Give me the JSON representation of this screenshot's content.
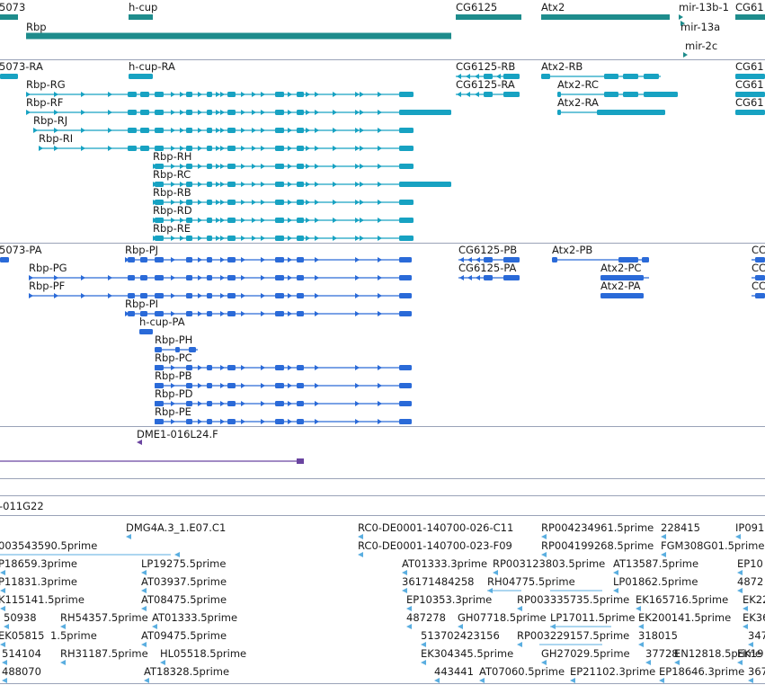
{
  "colors": {
    "gene_teal": "#1e8c8c",
    "transcript_teal": "#17a2c2",
    "transcript_blue": "#2a6ad8",
    "clone_purple": "#6a44a0",
    "est_light_blue": "#5aaee0",
    "track_divider": "#9aa3b8"
  },
  "track_genes": {
    "genes": [
      {
        "label": "5073",
        "bar": "5073"
      },
      {
        "label": "h-cup",
        "bar": "h-cup"
      },
      {
        "label": "Rbp",
        "bar": "Rbp"
      },
      {
        "label": "CG6125",
        "bar": "CG6125"
      },
      {
        "label": "Atx2",
        "bar": "Atx2"
      },
      {
        "label": "mir-13b-1",
        "bar": "mir-13b-1"
      },
      {
        "label": "mir-13a",
        "bar": "mir-13a"
      },
      {
        "label": "mir-2c",
        "bar": "mir-2c"
      },
      {
        "label": "CG61",
        "bar": "CG61"
      }
    ]
  },
  "track_transcripts": {
    "labels": [
      {
        "text": "5073-RA"
      },
      {
        "text": "h-cup-RA"
      },
      {
        "text": "Rbp-RG"
      },
      {
        "text": "Rbp-RF"
      },
      {
        "text": "Rbp-RJ"
      },
      {
        "text": "Rbp-RI"
      },
      {
        "text": "Rbp-RH"
      },
      {
        "text": "Rbp-RC"
      },
      {
        "text": "Rbp-RB"
      },
      {
        "text": "Rbp-RD"
      },
      {
        "text": "Rbp-RE"
      },
      {
        "text": "CG6125-RB"
      },
      {
        "text": "CG6125-RA"
      },
      {
        "text": "Atx2-RB"
      },
      {
        "text": "Atx2-RC"
      },
      {
        "text": "Atx2-RA"
      },
      {
        "text": "CG61"
      },
      {
        "text": "CG61"
      },
      {
        "text": "CG61"
      }
    ]
  },
  "track_proteins": {
    "labels": [
      {
        "text": "5073-PA"
      },
      {
        "text": "Rbp-PJ"
      },
      {
        "text": "Rbp-PG"
      },
      {
        "text": "Rbp-PF"
      },
      {
        "text": "Rbp-PI"
      },
      {
        "text": "h-cup-PA"
      },
      {
        "text": "Rbp-PH"
      },
      {
        "text": "Rbp-PC"
      },
      {
        "text": "Rbp-PB"
      },
      {
        "text": "Rbp-PD"
      },
      {
        "text": "Rbp-PE"
      },
      {
        "text": "CG6125-PB"
      },
      {
        "text": "CG6125-PA"
      },
      {
        "text": "Atx2-PB"
      },
      {
        "text": "Atx2-PC"
      },
      {
        "text": "Atx2-PA"
      },
      {
        "text": "CC"
      },
      {
        "text": "CC"
      },
      {
        "text": "CC"
      }
    ]
  },
  "track_clones": {
    "labels": [
      {
        "text": "DME1-016L24.F"
      },
      {
        "text": "-011G22"
      }
    ]
  },
  "track_ests": {
    "labels": [
      "DMG4A.3_1.E07.C1",
      "RC0-DE0001-140700-026-C11",
      "RP004234961.5prime",
      "228415",
      "IP091",
      "003543590.5prime",
      "RC0-DE0001-140700-023-F09",
      "RP004199268.5prime",
      "FGM308G01.5prime",
      "P18659.3prime",
      "LP19275.5prime",
      "AT01333.3prime",
      "RP003123803.5prime",
      "AT13587.5prime",
      "EP10",
      "P11831.3prime",
      "AT03937.5prime",
      "36171484258",
      "RH04775.5prime",
      "LP01862.5prime",
      "4872",
      "K115141.5prime",
      "AT08475.5prime",
      "EP10353.3prime",
      "RP003335735.5prime",
      "EK165716.5prime",
      "EK22",
      "50938",
      "RH54357.5prime",
      "AT01333.5prime",
      "487278",
      "GH07718.5prime",
      "LP17011.5prime",
      "EK200141.5prime",
      "EK36",
      "EK05815",
      "1.5prime",
      "AT09475.5prime",
      "513702423156",
      "RP003229157.5prime",
      "318015",
      "347",
      "514104",
      "RH31187.5prime",
      "HL05518.5prime",
      "EK304345.5prime",
      "GH27029.5prime",
      "37728",
      "EN12818.5prime",
      "EK19",
      "488070",
      "AT18328.5prime",
      "443441",
      "AT07060.5prime",
      "EP21102.3prime",
      "EP18646.3prime",
      "367"
    ]
  }
}
